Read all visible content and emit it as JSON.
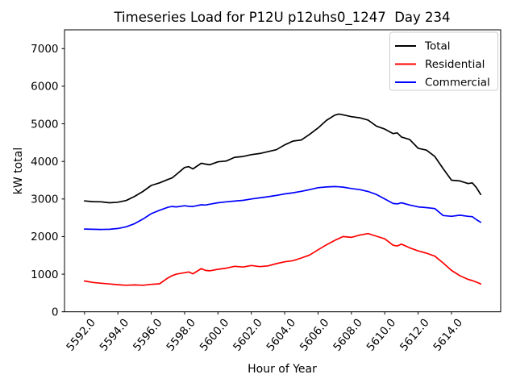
{
  "figure": {
    "background": "#ffffff"
  },
  "chart_data": {
    "type": "line",
    "title": "Timeseries Load for P12U p12uhs0_1247  Day 234",
    "xlabel": "Hour of Year",
    "ylabel": "kW total",
    "xlim": [
      5590.8,
      5616.95
    ],
    "ylim": [
      0,
      7500
    ],
    "grid": false,
    "legend": {
      "position": "upper right",
      "entries": [
        "Total",
        "Residential",
        "Commercial"
      ]
    },
    "xticks": {
      "values": [
        5592,
        5594,
        5596,
        5598,
        5600,
        5602,
        5604,
        5606,
        5608,
        5610,
        5612,
        5614
      ],
      "labels": [
        "5592.0",
        "5594.0",
        "5596.0",
        "5598.0",
        "5600.0",
        "5602.0",
        "5604.0",
        "5606.0",
        "5608.0",
        "5610.0",
        "5612.0",
        "5614.0"
      ]
    },
    "yticks": {
      "values": [
        0,
        1000,
        2000,
        3000,
        4000,
        5000,
        6000,
        7000
      ],
      "labels": [
        "0",
        "1000",
        "2000",
        "3000",
        "4000",
        "5000",
        "6000",
        "7000"
      ]
    },
    "x": [
      5592.0,
      5592.5,
      5593.0,
      5593.5,
      5594.0,
      5594.5,
      5595.0,
      5595.5,
      5596.0,
      5596.5,
      5597.0,
      5597.25,
      5597.5,
      5598.0,
      5598.25,
      5598.5,
      5599.0,
      5599.25,
      5599.5,
      5600.0,
      5600.5,
      5601.0,
      5601.5,
      5602.0,
      5602.5,
      5603.0,
      5603.5,
      5604.0,
      5604.5,
      5605.0,
      5605.5,
      5606.0,
      5606.5,
      5607.0,
      5607.25,
      5607.5,
      5608.0,
      5608.5,
      5609.0,
      5609.5,
      5610.0,
      5610.5,
      5610.75,
      5611.0,
      5611.5,
      5612.0,
      5612.5,
      5613.0,
      5613.5,
      5614.0,
      5614.5,
      5615.0,
      5615.25,
      5615.5,
      5615.75
    ],
    "series": [
      {
        "name": "Total",
        "color": "#000000",
        "values": [
          2950,
          2930,
          2925,
          2900,
          2915,
          2960,
          3070,
          3200,
          3360,
          3430,
          3520,
          3560,
          3650,
          3840,
          3860,
          3800,
          3950,
          3930,
          3910,
          3990,
          4010,
          4110,
          4130,
          4180,
          4210,
          4260,
          4310,
          4440,
          4540,
          4570,
          4720,
          4890,
          5090,
          5230,
          5260,
          5240,
          5190,
          5160,
          5100,
          4940,
          4860,
          4740,
          4760,
          4650,
          4580,
          4350,
          4300,
          4130,
          3810,
          3500,
          3480,
          3410,
          3430,
          3300,
          3120
        ]
      },
      {
        "name": "Residential",
        "color": "#ff0000",
        "values": [
          820,
          780,
          760,
          740,
          720,
          705,
          715,
          705,
          730,
          745,
          900,
          960,
          1000,
          1040,
          1060,
          1010,
          1150,
          1100,
          1090,
          1130,
          1160,
          1210,
          1190,
          1230,
          1200,
          1220,
          1280,
          1330,
          1360,
          1430,
          1510,
          1650,
          1780,
          1900,
          1950,
          2000,
          1980,
          2040,
          2080,
          2010,
          1940,
          1770,
          1750,
          1800,
          1700,
          1620,
          1560,
          1480,
          1300,
          1100,
          960,
          860,
          830,
          790,
          740
        ]
      },
      {
        "name": "Commercial",
        "color": "#0000ff",
        "values": [
          2200,
          2195,
          2190,
          2195,
          2215,
          2260,
          2345,
          2465,
          2610,
          2700,
          2780,
          2800,
          2790,
          2820,
          2805,
          2800,
          2845,
          2840,
          2860,
          2900,
          2925,
          2945,
          2965,
          3000,
          3030,
          3060,
          3095,
          3135,
          3165,
          3205,
          3250,
          3300,
          3320,
          3330,
          3325,
          3315,
          3280,
          3250,
          3200,
          3120,
          3000,
          2880,
          2870,
          2900,
          2840,
          2790,
          2770,
          2745,
          2560,
          2540,
          2570,
          2540,
          2530,
          2450,
          2380
        ]
      }
    ]
  }
}
